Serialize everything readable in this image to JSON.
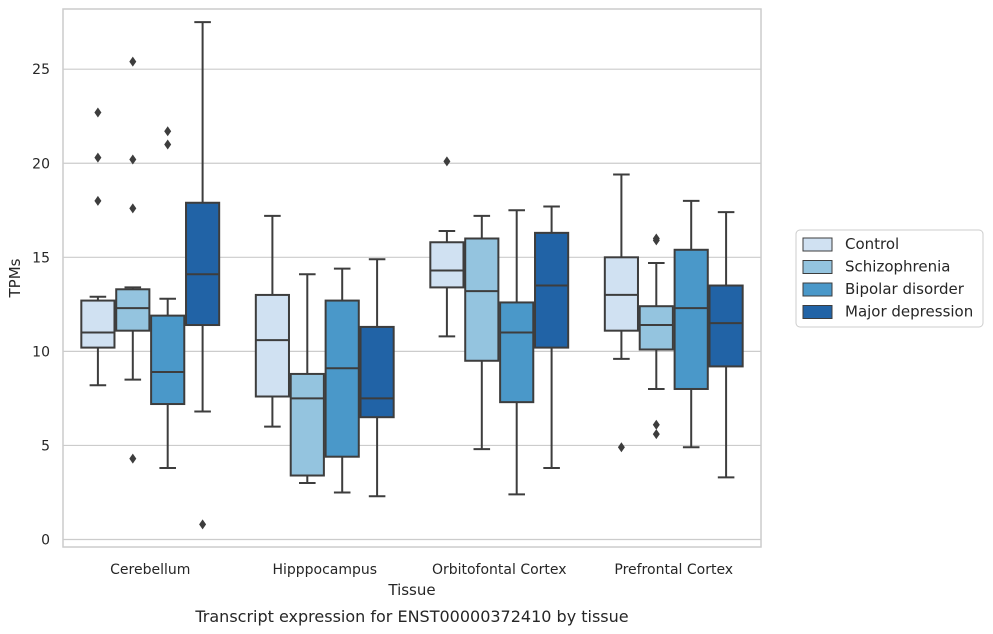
{
  "chart_data": {
    "type": "box",
    "title": "Transcript expression for ENST00000372410 by tissue",
    "xlabel": "Tissue",
    "ylabel": "TPMs",
    "ylim": [
      -0.4,
      28.2
    ],
    "yticks": [
      0,
      5,
      10,
      15,
      20,
      25
    ],
    "grid": "horizontal",
    "legend_position": "right",
    "categories": [
      "Cerebellum",
      "Hipppocampus",
      "Orbitofontal Cortex",
      "Prefrontal Cortex"
    ],
    "series": [
      {
        "name": "Control",
        "color": "#d0e1f2",
        "boxes": [
          {
            "whislo": 8.2,
            "q1": 10.2,
            "med": 11.0,
            "q3": 12.7,
            "whishi": 12.9,
            "fliers": [
              22.7,
              20.3,
              18.0
            ]
          },
          {
            "whislo": 6.0,
            "q1": 7.6,
            "med": 10.6,
            "q3": 13.0,
            "whishi": 17.2,
            "fliers": []
          },
          {
            "whislo": 10.8,
            "q1": 13.4,
            "med": 14.3,
            "q3": 15.8,
            "whishi": 16.4,
            "fliers": [
              20.1
            ]
          },
          {
            "whislo": 9.6,
            "q1": 11.1,
            "med": 13.0,
            "q3": 15.0,
            "whishi": 19.4,
            "fliers": [
              4.9
            ]
          }
        ]
      },
      {
        "name": "Schizophrenia",
        "color": "#94c4df",
        "boxes": [
          {
            "whislo": 8.5,
            "q1": 11.1,
            "med": 12.3,
            "q3": 13.3,
            "whishi": 13.4,
            "fliers": [
              25.4,
              20.2,
              17.6,
              4.3
            ]
          },
          {
            "whislo": 3.0,
            "q1": 3.4,
            "med": 7.5,
            "q3": 8.8,
            "whishi": 14.1,
            "fliers": []
          },
          {
            "whislo": 4.8,
            "q1": 9.5,
            "med": 13.2,
            "q3": 16.0,
            "whishi": 17.2,
            "fliers": []
          },
          {
            "whislo": 8.0,
            "q1": 10.1,
            "med": 11.4,
            "q3": 12.4,
            "whishi": 14.7,
            "fliers": [
              16.0,
              15.9,
              6.1,
              5.6
            ]
          }
        ]
      },
      {
        "name": "Bipolar disorder",
        "color": "#4a98c9",
        "boxes": [
          {
            "whislo": 3.8,
            "q1": 7.2,
            "med": 8.9,
            "q3": 11.9,
            "whishi": 12.8,
            "fliers": [
              21.7,
              21.0
            ]
          },
          {
            "whislo": 2.5,
            "q1": 4.4,
            "med": 9.1,
            "q3": 12.7,
            "whishi": 14.4,
            "fliers": []
          },
          {
            "whislo": 2.4,
            "q1": 7.3,
            "med": 11.0,
            "q3": 12.6,
            "whishi": 17.5,
            "fliers": []
          },
          {
            "whislo": 4.9,
            "q1": 8.0,
            "med": 12.3,
            "q3": 15.4,
            "whishi": 18.0,
            "fliers": []
          }
        ]
      },
      {
        "name": "Major depression",
        "color": "#2163a6",
        "boxes": [
          {
            "whislo": 6.8,
            "q1": 11.4,
            "med": 14.1,
            "q3": 17.9,
            "whishi": 27.5,
            "fliers": [
              0.8
            ]
          },
          {
            "whislo": 2.3,
            "q1": 6.5,
            "med": 7.5,
            "q3": 11.3,
            "whishi": 14.9,
            "fliers": []
          },
          {
            "whislo": 3.8,
            "q1": 10.2,
            "med": 13.5,
            "q3": 16.3,
            "whishi": 17.7,
            "fliers": []
          },
          {
            "whislo": 3.3,
            "q1": 9.2,
            "med": 11.5,
            "q3": 13.5,
            "whishi": 17.4,
            "fliers": []
          }
        ]
      }
    ]
  }
}
